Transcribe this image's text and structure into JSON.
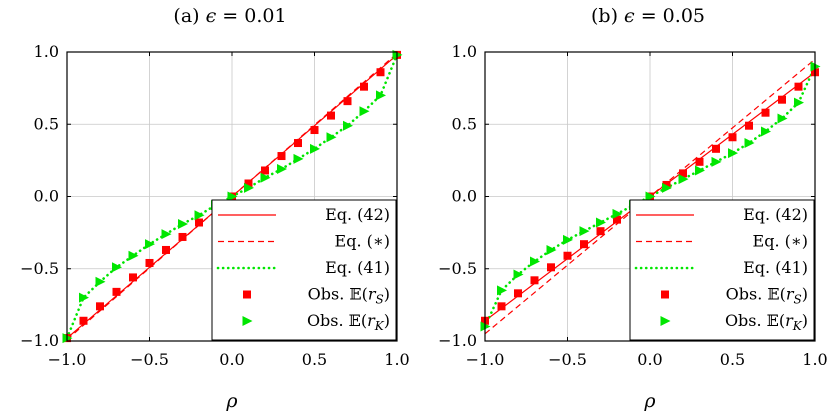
{
  "chart_data": [
    {
      "type": "line",
      "title": "(a) ϵ = 0.01",
      "xlabel": "ρ",
      "ylabel": "",
      "xlim": [
        -1,
        1
      ],
      "ylim": [
        -1,
        1
      ],
      "xticks": [
        -1.0,
        -0.5,
        0.0,
        0.5,
        1.0
      ],
      "yticks": [
        -1.0,
        -0.5,
        0.0,
        0.5,
        1.0
      ],
      "xtick_labels": [
        "−1.0",
        "−0.5",
        "0.0",
        "0.5",
        "1.0"
      ],
      "ytick_labels": [
        "−1.0",
        "−0.5",
        "0.0",
        "0.5",
        "1.0"
      ],
      "grid": true,
      "legend_position": "bottom-right",
      "series": [
        {
          "name": "Eq. (42)",
          "style": "solid",
          "color": "#ff0000",
          "x": [
            -1.0,
            1.0
          ],
          "y": [
            -0.98,
            0.98
          ]
        },
        {
          "name": "Eq. (∗)",
          "style": "dashed",
          "color": "#ff0000",
          "x": [
            -1.0,
            1.0
          ],
          "y": [
            -0.99,
            0.99
          ]
        },
        {
          "name": "Eq. (41)",
          "style": "dotted",
          "color": "#00e600",
          "x": [
            -1.0,
            -0.9,
            -0.8,
            -0.7,
            -0.6,
            -0.5,
            -0.4,
            -0.3,
            -0.2,
            -0.1,
            0.0,
            0.1,
            0.2,
            0.3,
            0.4,
            0.5,
            0.6,
            0.7,
            0.8,
            0.9,
            1.0
          ],
          "y": [
            -0.98,
            -0.7,
            -0.59,
            -0.49,
            -0.41,
            -0.33,
            -0.26,
            -0.19,
            -0.13,
            -0.06,
            0.0,
            0.06,
            0.13,
            0.19,
            0.26,
            0.33,
            0.41,
            0.49,
            0.59,
            0.7,
            0.98
          ]
        },
        {
          "name": "Obs. 𝔼(r_S)",
          "style": "marker-square",
          "color": "#ff0000",
          "x": [
            -1.0,
            -0.9,
            -0.8,
            -0.7,
            -0.6,
            -0.5,
            -0.4,
            -0.3,
            -0.2,
            -0.1,
            0.0,
            0.1,
            0.2,
            0.3,
            0.4,
            0.5,
            0.6,
            0.7,
            0.8,
            0.9,
            1.0
          ],
          "y": [
            -0.98,
            -0.86,
            -0.76,
            -0.66,
            -0.56,
            -0.46,
            -0.37,
            -0.28,
            -0.18,
            -0.09,
            0.0,
            0.09,
            0.18,
            0.28,
            0.37,
            0.46,
            0.56,
            0.66,
            0.76,
            0.86,
            0.98
          ]
        },
        {
          "name": "Obs. 𝔼(r_K)",
          "style": "marker-triangle",
          "color": "#00e600",
          "x": [
            -1.0,
            -0.9,
            -0.8,
            -0.7,
            -0.6,
            -0.5,
            -0.4,
            -0.3,
            -0.2,
            -0.1,
            0.0,
            0.1,
            0.2,
            0.3,
            0.4,
            0.5,
            0.6,
            0.7,
            0.8,
            0.9,
            1.0
          ],
          "y": [
            -0.98,
            -0.7,
            -0.59,
            -0.49,
            -0.41,
            -0.33,
            -0.26,
            -0.19,
            -0.13,
            -0.06,
            0.0,
            0.06,
            0.13,
            0.19,
            0.26,
            0.33,
            0.41,
            0.49,
            0.59,
            0.7,
            0.98
          ]
        }
      ]
    },
    {
      "type": "line",
      "title": "(b) ϵ = 0.05",
      "xlabel": "ρ",
      "ylabel": "",
      "xlim": [
        -1,
        1
      ],
      "ylim": [
        -1,
        1
      ],
      "xticks": [
        -1.0,
        -0.5,
        0.0,
        0.5,
        1.0
      ],
      "yticks": [
        -1.0,
        -0.5,
        0.0,
        0.5,
        1.0
      ],
      "xtick_labels": [
        "−1.0",
        "−0.5",
        "0.0",
        "0.5",
        "1.0"
      ],
      "ytick_labels": [
        "−1.0",
        "−0.5",
        "0.0",
        "0.5",
        "1.0"
      ],
      "grid": true,
      "legend_position": "bottom-right",
      "series": [
        {
          "name": "Eq. (42)",
          "style": "solid",
          "color": "#ff0000",
          "x": [
            -1.0,
            1.0
          ],
          "y": [
            -0.86,
            0.86
          ]
        },
        {
          "name": "Eq. (∗)",
          "style": "dashed",
          "color": "#ff0000",
          "x": [
            -1.0,
            1.0
          ],
          "y": [
            -0.95,
            0.95
          ]
        },
        {
          "name": "Eq. (41)",
          "style": "dotted",
          "color": "#00e600",
          "x": [
            -1.0,
            -0.9,
            -0.8,
            -0.7,
            -0.6,
            -0.5,
            -0.4,
            -0.3,
            -0.2,
            -0.1,
            0.0,
            0.1,
            0.2,
            0.3,
            0.4,
            0.5,
            0.6,
            0.7,
            0.8,
            0.9,
            1.0
          ],
          "y": [
            -0.9,
            -0.65,
            -0.54,
            -0.45,
            -0.37,
            -0.3,
            -0.24,
            -0.18,
            -0.12,
            -0.06,
            0.0,
            0.06,
            0.12,
            0.18,
            0.24,
            0.3,
            0.37,
            0.45,
            0.54,
            0.65,
            0.9
          ]
        },
        {
          "name": "Obs. 𝔼(r_S)",
          "style": "marker-square",
          "color": "#ff0000",
          "x": [
            -1.0,
            -0.9,
            -0.8,
            -0.7,
            -0.6,
            -0.5,
            -0.4,
            -0.3,
            -0.2,
            -0.1,
            0.0,
            0.1,
            0.2,
            0.3,
            0.4,
            0.5,
            0.6,
            0.7,
            0.8,
            0.9,
            1.0
          ],
          "y": [
            -0.86,
            -0.76,
            -0.67,
            -0.58,
            -0.49,
            -0.41,
            -0.33,
            -0.24,
            -0.16,
            -0.08,
            0.0,
            0.08,
            0.16,
            0.24,
            0.33,
            0.41,
            0.49,
            0.58,
            0.67,
            0.76,
            0.86
          ]
        },
        {
          "name": "Obs. 𝔼(r_K)",
          "style": "marker-triangle",
          "color": "#00e600",
          "x": [
            -1.0,
            -0.9,
            -0.8,
            -0.7,
            -0.6,
            -0.5,
            -0.4,
            -0.3,
            -0.2,
            -0.1,
            0.0,
            0.1,
            0.2,
            0.3,
            0.4,
            0.5,
            0.6,
            0.7,
            0.8,
            0.9,
            1.0
          ],
          "y": [
            -0.9,
            -0.65,
            -0.54,
            -0.45,
            -0.37,
            -0.3,
            -0.24,
            -0.18,
            -0.12,
            -0.06,
            0.0,
            0.06,
            0.12,
            0.18,
            0.24,
            0.3,
            0.37,
            0.45,
            0.54,
            0.65,
            0.9
          ]
        }
      ]
    }
  ]
}
